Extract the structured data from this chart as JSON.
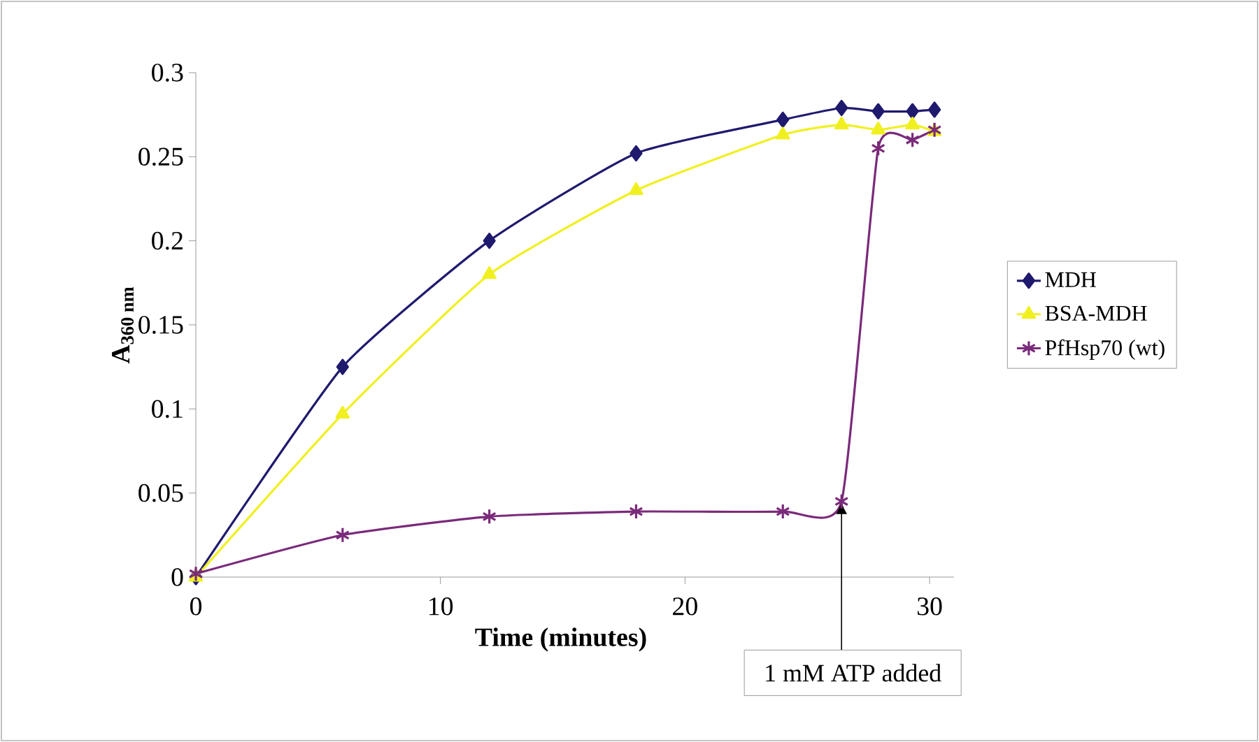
{
  "chart_data": {
    "type": "line",
    "xlabel": "Time (minutes)",
    "ylabel": "A$_{360 nm}$",
    "xlim": [
      0,
      31
    ],
    "xticks": [
      0,
      10,
      20,
      30
    ],
    "ylim": [
      0,
      0.3
    ],
    "yticks": [
      0,
      0.05,
      0.1,
      0.15,
      0.2,
      0.25,
      0.3
    ],
    "grid": false,
    "legend": "right",
    "line_style": "solid",
    "x": [
      0,
      6,
      12,
      18,
      24,
      26.4,
      27.9,
      29.3,
      30.2
    ],
    "series": [
      {
        "name": "MDH",
        "color": "#1f1a6e",
        "marker": "diamond",
        "values": [
          0,
          0.125,
          0.2,
          0.252,
          0.272,
          0.279,
          0.277,
          0.277,
          0.278
        ]
      },
      {
        "name": "BSA-MDH",
        "color": "#f0f020",
        "marker": "triangle",
        "values": [
          0,
          0.097,
          0.18,
          0.23,
          0.263,
          0.269,
          0.266,
          0.269,
          0.265
        ]
      },
      {
        "name": "PfHsp70 (wt)",
        "color": "#7a2a7a",
        "marker": "cross",
        "values": [
          0.002,
          0.025,
          0.036,
          0.039,
          0.039,
          0.045,
          0.255,
          0.26,
          0.266
        ]
      }
    ],
    "annotations": [
      {
        "text": "1 mM ATP added",
        "x": 26.4,
        "y": 0.045
      }
    ]
  }
}
